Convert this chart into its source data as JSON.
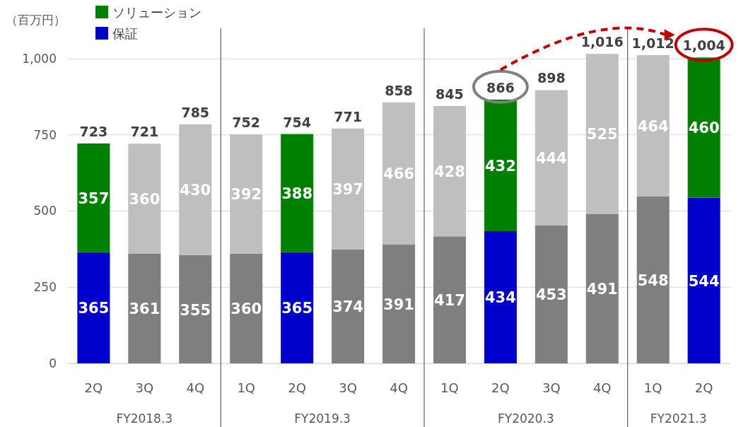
{
  "chart_data": {
    "type": "bar",
    "stacked": true,
    "ylabel": "（百万円）",
    "categories": [
      "2Q",
      "3Q",
      "4Q",
      "1Q",
      "2Q",
      "3Q",
      "4Q",
      "1Q",
      "2Q",
      "3Q",
      "4Q",
      "1Q",
      "2Q"
    ],
    "series": [
      {
        "name": "保証",
        "color": "#0000cc",
        "colors": [
          "#0000cc",
          "#7f7f7f",
          "#7f7f7f",
          "#7f7f7f",
          "#0000cc",
          "#7f7f7f",
          "#7f7f7f",
          "#7f7f7f",
          "#0000cc",
          "#7f7f7f",
          "#7f7f7f",
          "#7f7f7f",
          "#0000cc"
        ],
        "values": [
          365,
          361,
          355,
          360,
          365,
          374,
          391,
          417,
          434,
          453,
          491,
          548,
          544
        ]
      },
      {
        "name": "ソリューション",
        "color": "#008000",
        "colors": [
          "#008000",
          "#bfbfbf",
          "#bfbfbf",
          "#bfbfbf",
          "#008000",
          "#bfbfbf",
          "#bfbfbf",
          "#bfbfbf",
          "#008000",
          "#bfbfbf",
          "#bfbfbf",
          "#bfbfbf",
          "#008000"
        ],
        "values": [
          357,
          360,
          430,
          392,
          388,
          397,
          466,
          428,
          432,
          444,
          525,
          464,
          460
        ]
      }
    ],
    "totals": [
      "723",
      "721",
      "785",
      "752",
      "754",
      "771",
      "858",
      "845",
      "866",
      "898",
      "1,016",
      "1,012",
      "1,004"
    ],
    "data_labels": true,
    "ylim": [
      0,
      1100
    ],
    "yticks": [
      0,
      250,
      500,
      750,
      {
        "value": 1000,
        "label": "1,000"
      }
    ],
    "grid": "y",
    "legend": "top left",
    "annotations": [
      "FY2018.3",
      "FY2019.3",
      "FY2020.3",
      "FY2021.3"
    ]
  }
}
